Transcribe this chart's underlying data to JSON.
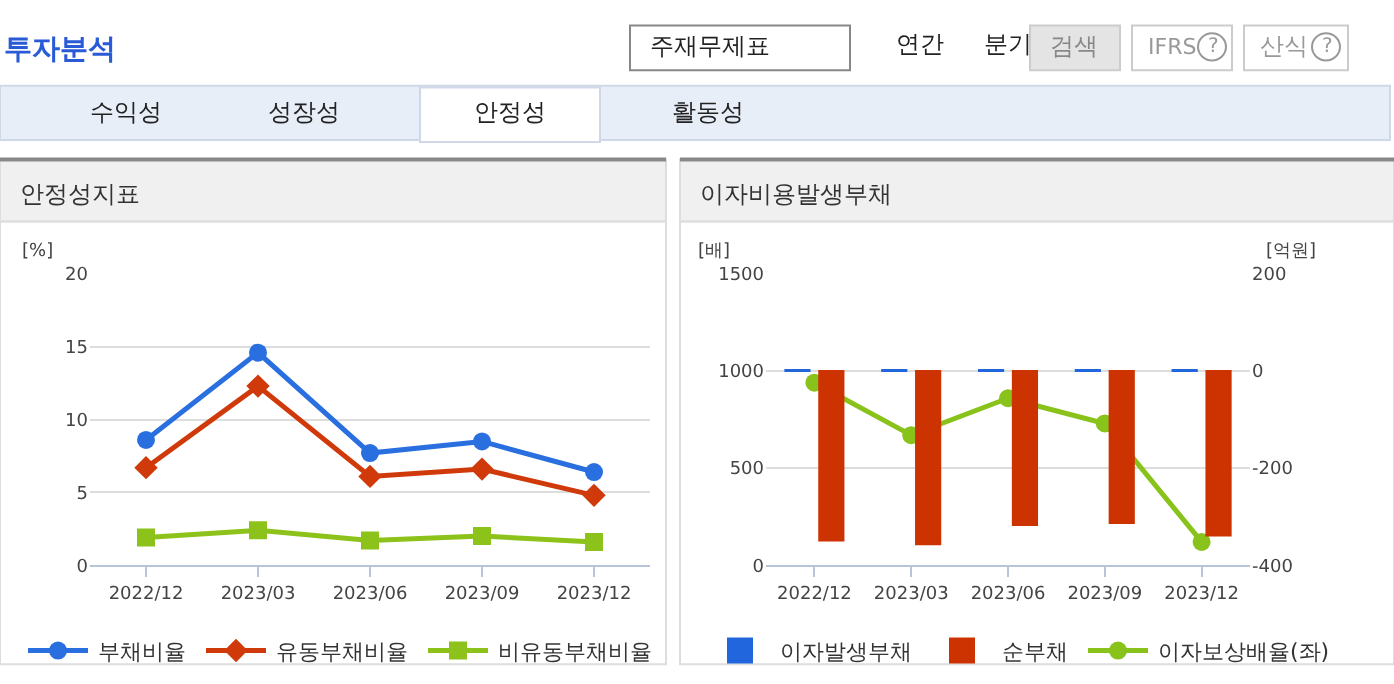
{
  "chart_data": [
    {
      "type": "other",
      "title": "투자분석",
      "annotations": [
        "주재무제표",
        "연간",
        "분기",
        "검색",
        "IFRS",
        "?",
        "산식",
        "?",
        "수익성",
        "성장성",
        "안정성",
        "활동성"
      ]
    },
    {
      "type": "line",
      "title": "안정성지표",
      "ylabel": "[%]",
      "categories": [
        "2022/12",
        "2023/03",
        "2023/06",
        "2023/09",
        "2023/12"
      ],
      "ylim": [
        0,
        20
      ],
      "yticks": [
        0,
        5,
        10,
        15,
        20
      ],
      "grid": "y",
      "legend": "bottom",
      "series": [
        {
          "name": "부채비율",
          "color": "#2a6fe0",
          "marker": "circle",
          "values": [
            8.6,
            14.6,
            7.7,
            8.5,
            6.4
          ]
        },
        {
          "name": "유동부채비율",
          "color": "#d03a0a",
          "marker": "diamond",
          "values": [
            6.7,
            12.3,
            6.1,
            6.6,
            4.8
          ]
        },
        {
          "name": "비유동부채비율",
          "color": "#8cc21a",
          "marker": "square",
          "values": [
            1.9,
            2.4,
            1.7,
            2.0,
            1.6
          ]
        }
      ]
    },
    {
      "type": "bar",
      "title": "이자비용발생부채",
      "ylabel": "[배]",
      "y2label": "[억원]",
      "categories": [
        "2022/12",
        "2023/03",
        "2023/06",
        "2023/09",
        "2023/12"
      ],
      "ylim": [
        0,
        1500
      ],
      "yticks": [
        0,
        500,
        1000,
        1500
      ],
      "y2lim": [
        -400,
        200
      ],
      "y2ticks": [
        -400,
        -200,
        0,
        200
      ],
      "grid": "y",
      "legend": "bottom",
      "series": [
        {
          "name": "이자발생부채",
          "color": "#2266dd",
          "axis": "y2",
          "values": [
            2,
            2,
            2,
            2,
            2
          ]
        },
        {
          "name": "순부채",
          "color": "#cc3300",
          "axis": "y2",
          "values": [
            -349,
            -357,
            -317,
            -313,
            -339
          ]
        },
        {
          "name": "이자보상배율(좌)",
          "type": "line",
          "color": "#88c21a",
          "marker": "circle",
          "values": [
            940,
            670,
            860,
            730,
            120
          ]
        }
      ]
    }
  ]
}
